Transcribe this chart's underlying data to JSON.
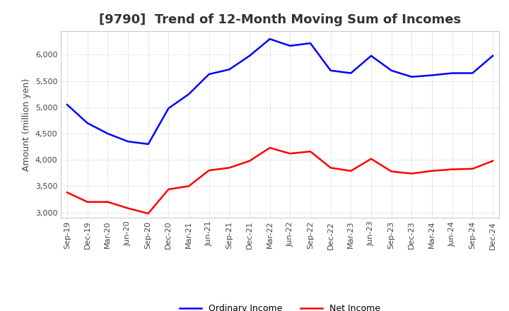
{
  "title": "[9790]  Trend of 12-Month Moving Sum of Incomes",
  "ylabel": "Amount (million yen)",
  "background_color": "#ffffff",
  "grid_color": "#bbbbbb",
  "x_labels": [
    "Sep-19",
    "Dec-19",
    "Mar-20",
    "Jun-20",
    "Sep-20",
    "Dec-20",
    "Mar-21",
    "Jun-21",
    "Sep-21",
    "Dec-21",
    "Mar-22",
    "Jun-22",
    "Sep-22",
    "Dec-22",
    "Mar-23",
    "Jun-23",
    "Sep-23",
    "Dec-23",
    "Mar-24",
    "Jun-24",
    "Sep-24",
    "Dec-24"
  ],
  "ordinary_income": [
    5050,
    4700,
    4500,
    4350,
    4300,
    4980,
    5250,
    5630,
    5720,
    5980,
    6300,
    6170,
    6220,
    5700,
    5650,
    5980,
    5700,
    5580,
    5610,
    5650,
    5650,
    5980
  ],
  "net_income": [
    3380,
    3200,
    3200,
    3080,
    2980,
    3440,
    3500,
    3800,
    3850,
    3980,
    4230,
    4120,
    4160,
    3850,
    3790,
    4020,
    3780,
    3740,
    3790,
    3820,
    3830,
    3980
  ],
  "ordinary_color": "#0000ff",
  "net_color": "#ff0000",
  "ylim_min": 2900,
  "ylim_max": 6450,
  "yticks": [
    3000,
    3500,
    4000,
    4500,
    5000,
    5500,
    6000
  ],
  "title_fontsize": 13,
  "title_color": "#333333",
  "axis_fontsize": 9,
  "tick_fontsize": 8,
  "legend_fontsize": 9,
  "line_width": 1.8
}
